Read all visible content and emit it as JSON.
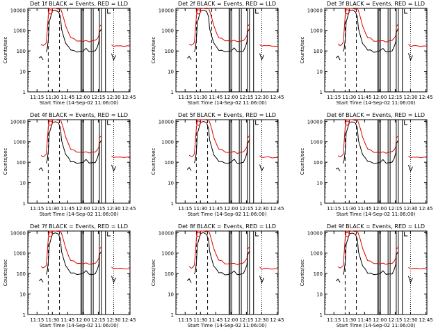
{
  "chart_data": [
    {
      "type": "line",
      "panel": 1,
      "title": "Det 1f BLACK = Events, RED = LLD",
      "xlabel": "Start Time (14-Sep-02 11:06:00)",
      "ylabel": "Counts/sec"
    },
    {
      "type": "line",
      "panel": 2,
      "title": "Det 2f BLACK = Events, RED = LLD",
      "xlabel": "Start Time (14-Sep-02 11:06:00)",
      "ylabel": "Counts/sec"
    },
    {
      "type": "line",
      "panel": 3,
      "title": "Det 3f BLACK = Events, RED = LLD",
      "xlabel": "Start Time (14-Sep-02 11:06:00)",
      "ylabel": "Counts/sec"
    },
    {
      "type": "line",
      "panel": 4,
      "title": "Det 4f BLACK = Events, RED = LLD",
      "xlabel": "Start Time (14-Sep-02 11:06:00)",
      "ylabel": "Counts/sec"
    },
    {
      "type": "line",
      "panel": 5,
      "title": "Det 5f BLACK = Events, RED = LLD",
      "xlabel": "Start Time (14-Sep-02 11:06:00)",
      "ylabel": "Counts/sec"
    },
    {
      "type": "line",
      "panel": 6,
      "title": "Det 6f BLACK = Events, RED = LLD",
      "xlabel": "Start Time (14-Sep-02 11:06:00)",
      "ylabel": "Counts/sec"
    },
    {
      "type": "line",
      "panel": 7,
      "title": "Det 7f BLACK = Events, RED = LLD",
      "xlabel": "Start Time (14-Sep-02 11:06:00)",
      "ylabel": "Counts/sec"
    },
    {
      "type": "line",
      "panel": 8,
      "title": "Det 8f BLACK = Events, RED = LLD",
      "xlabel": "Start Time (14-Sep-02 11:06:00)",
      "ylabel": "Counts/sec"
    },
    {
      "type": "line",
      "panel": 9,
      "title": "Det 9f BLACK = Events, RED = LLD",
      "xlabel": "Start Time (14-Sep-02 11:06:00)",
      "ylabel": "Counts/sec"
    }
  ],
  "shared": {
    "x_ticks": [
      "11:15",
      "11:30",
      "11:45",
      "12:00",
      "12:15",
      "12:30",
      "12:45"
    ],
    "x_tick_minutes": [
      9,
      24,
      39,
      54,
      69,
      84,
      99
    ],
    "xlim_minutes": [
      0,
      100
    ],
    "y_ticks": [
      "1",
      "10",
      "100",
      "1000",
      "10000"
    ],
    "y_tick_values": [
      1,
      10,
      100,
      1000,
      10000
    ],
    "ylim": [
      1,
      12000
    ],
    "yscale": "log",
    "series_colors": {
      "events": "#000000",
      "lld": "#dd0000"
    },
    "dashed_lines_minutes": [
      20,
      31
    ],
    "dashed_lines_minutes_panel_2": [
      20,
      35
    ],
    "solid_lines_minutes": [
      52,
      53,
      54.5,
      62,
      64,
      70,
      72,
      76
    ],
    "dotted_line_minute": 84,
    "series": {
      "time_minutes": [
        0,
        6,
        8,
        10,
        11,
        13,
        15,
        16.5,
        18,
        19,
        20,
        21,
        24,
        27,
        30,
        32,
        33,
        35,
        37,
        40,
        42,
        45,
        48,
        51,
        54,
        57,
        60,
        63,
        66,
        68,
        69.5,
        70,
        72,
        74,
        76,
        78,
        80,
        82,
        84,
        86,
        88,
        91,
        94,
        97,
        100
      ],
      "lld_counts_per_sec": [
        null,
        null,
        null,
        null,
        null,
        200,
        200,
        200,
        250,
        900,
        5000,
        12000,
        12000,
        12000,
        12000,
        12000,
        9000,
        4000,
        1800,
        700,
        450,
        380,
        330,
        300,
        300,
        310,
        290,
        300,
        330,
        380,
        600,
        1500,
        2000,
        null,
        null,
        null,
        null,
        190,
        180,
        175,
        180,
        170,
        175,
        170,
        170
      ],
      "events_counts_per_sec": [
        null,
        null,
        null,
        null,
        45,
        50,
        40,
        null,
        90,
        120,
        350,
        2500,
        9000,
        9000,
        9000,
        4500,
        1200,
        500,
        250,
        150,
        110,
        100,
        95,
        90,
        100,
        130,
        95,
        90,
        100,
        150,
        300,
        800,
        1200,
        null,
        null,
        null,
        null,
        70,
        40,
        60,
        null,
        null,
        null,
        null,
        null
      ]
    }
  }
}
